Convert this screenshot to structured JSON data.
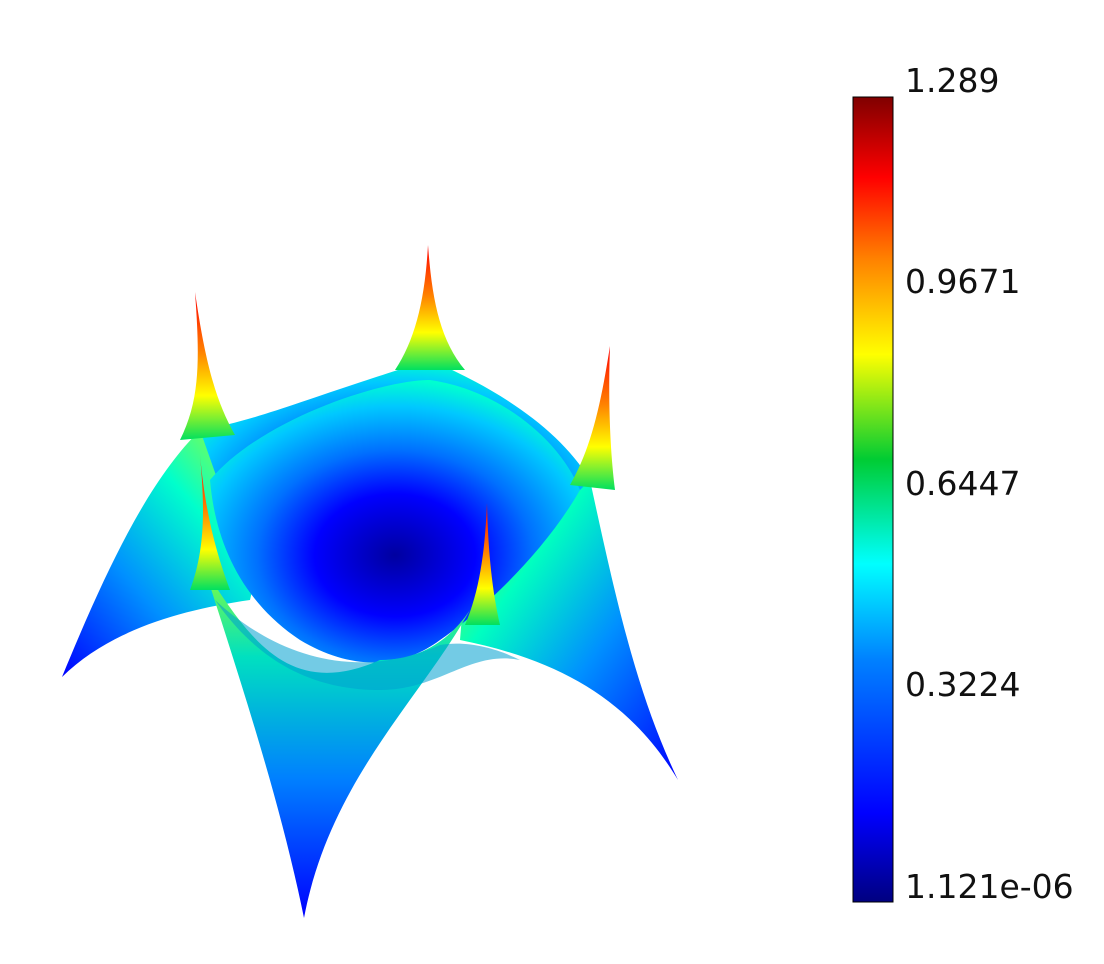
{
  "chart_data": {
    "type": "heatmap",
    "title": "",
    "colorbar": {
      "min": 1.121e-06,
      "max": 1.289,
      "tick_labels": [
        "1.289",
        "0.9671",
        "0.6447",
        "0.3224",
        "1.121e-06"
      ],
      "tick_values": [
        1.289,
        0.9671,
        0.6447,
        0.3224,
        1.121e-06
      ],
      "colormap": "jet",
      "colormap_stops": [
        "#000080",
        "#0000ff",
        "#0080ff",
        "#00ffff",
        "#00cc33",
        "#ffff00",
        "#ff8000",
        "#ff0000",
        "#800000"
      ],
      "placement": "right"
    },
    "surface": {
      "description_visible": "3D surface plot",
      "features": [
        "central dome",
        "five peak spikes"
      ]
    }
  }
}
